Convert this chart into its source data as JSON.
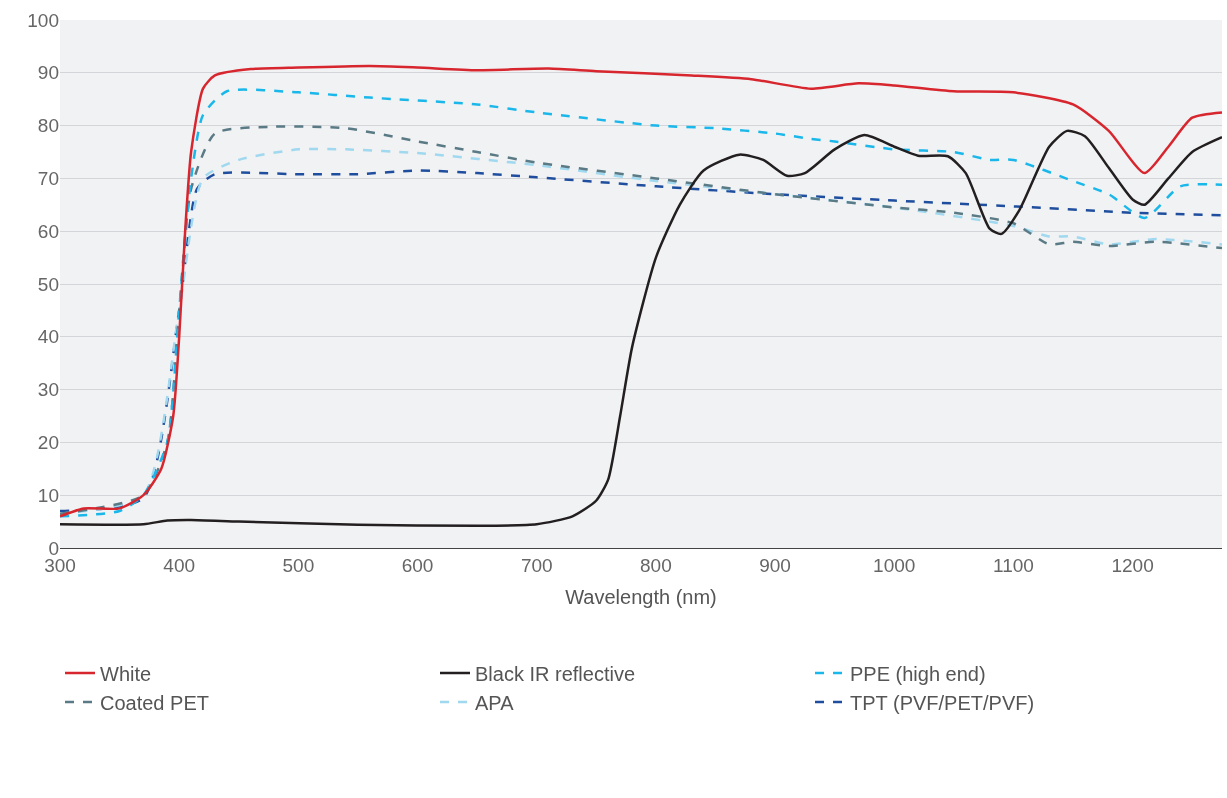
{
  "chart_data": {
    "type": "line",
    "xlabel": "Wavelength (nm)",
    "xlim": [
      300,
      1275
    ],
    "xticks": [
      300,
      400,
      500,
      600,
      700,
      800,
      900,
      1000,
      1100,
      1200
    ],
    "ylim": [
      0,
      100
    ],
    "yticks": [
      0,
      10,
      20,
      30,
      40,
      50,
      60,
      70,
      80,
      90,
      100
    ],
    "grid": "y",
    "legend": "bottom",
    "marker": "none",
    "series": [
      {
        "name": "White",
        "color": "#d7262e",
        "line_style": "solid",
        "x": [
          300,
          320,
          350,
          370,
          385,
          395,
          400,
          405,
          410,
          420,
          430,
          460,
          500,
          560,
          600,
          650,
          710,
          750,
          830,
          880,
          930,
          970,
          1000,
          1050,
          1100,
          1150,
          1180,
          1210,
          1230,
          1250,
          1275
        ],
        "values": [
          6,
          7.5,
          7.5,
          10,
          15,
          25,
          40,
          60,
          75,
          87,
          89.5,
          90.7,
          91,
          91.3,
          91,
          90.5,
          90.8,
          90.3,
          89.5,
          88.8,
          87,
          88,
          87.6,
          86.5,
          86.3,
          84,
          79,
          71,
          76,
          81.5,
          82.5
        ]
      },
      {
        "name": "Black IR reflective",
        "color": "#231f20",
        "line_style": "solid",
        "x": [
          300,
          370,
          390,
          410,
          450,
          550,
          650,
          700,
          730,
          750,
          760,
          770,
          780,
          800,
          820,
          840,
          870,
          890,
          910,
          925,
          950,
          975,
          1000,
          1020,
          1045,
          1060,
          1080,
          1090,
          1105,
          1130,
          1145,
          1160,
          1180,
          1200,
          1210,
          1230,
          1250,
          1275
        ],
        "values": [
          4.5,
          4.5,
          5.2,
          5.3,
          5,
          4.4,
          4.2,
          4.5,
          6,
          9,
          13,
          25,
          38,
          55,
          65,
          71.5,
          74.5,
          73.5,
          70.5,
          71,
          75.5,
          78.2,
          76,
          74.3,
          74.2,
          71,
          60.5,
          59.5,
          64,
          76,
          79,
          78,
          72,
          66,
          65,
          70,
          75,
          77.8
        ]
      },
      {
        "name": "PPE (high end)",
        "color": "#1ab7ea",
        "line_style": "dashed",
        "x": [
          300,
          350,
          370,
          390,
          400,
          410,
          420,
          440,
          500,
          560,
          650,
          700,
          800,
          850,
          900,
          930,
          950,
          1000,
          1050,
          1080,
          1100,
          1150,
          1180,
          1210,
          1240,
          1275
        ],
        "values": [
          6,
          7,
          10,
          20,
          45,
          70,
          82,
          86.5,
          86.3,
          85.3,
          84,
          82.5,
          80,
          79.5,
          78.5,
          77.5,
          77,
          75.5,
          75,
          73.5,
          73.5,
          69.5,
          67,
          62.5,
          68.5,
          68.8
        ]
      },
      {
        "name": "Coated PET",
        "color": "#5a7a85",
        "line_style": "dashed",
        "x": [
          300,
          370,
          390,
          400,
          410,
          430,
          480,
          540,
          600,
          650,
          700,
          800,
          900,
          1000,
          1050,
          1100,
          1130,
          1150,
          1180,
          1220,
          1275
        ],
        "values": [
          6.5,
          10,
          20,
          45,
          68,
          78.5,
          79.8,
          79.5,
          77,
          75,
          73,
          70,
          67,
          64.5,
          63.5,
          61.5,
          57.5,
          58,
          57.2,
          58,
          56.8
        ]
      },
      {
        "name": "APA",
        "color": "#a0d8ef",
        "line_style": "dashed",
        "x": [
          300,
          370,
          400,
          420,
          450,
          500,
          540,
          600,
          700,
          800,
          900,
          1000,
          1100,
          1130,
          1150,
          1180,
          1220,
          1275
        ],
        "values": [
          6.5,
          10,
          45,
          70,
          73.5,
          75.5,
          75.5,
          74.8,
          72.5,
          69.5,
          67,
          64.5,
          61,
          59,
          59,
          57.5,
          58.5,
          57.5
        ]
      },
      {
        "name": "TPT (PVF/PET/PVF)",
        "color": "#1f4e9e",
        "line_style": "dashed",
        "x": [
          300,
          370,
          400,
          415,
          430,
          500,
          550,
          600,
          650,
          700,
          800,
          900,
          1000,
          1100,
          1200,
          1275
        ],
        "values": [
          7,
          9.5,
          45,
          68,
          70.8,
          70.8,
          70.8,
          71.5,
          71,
          70.2,
          68.5,
          67,
          65.8,
          64.7,
          63.5,
          63
        ]
      }
    ]
  }
}
